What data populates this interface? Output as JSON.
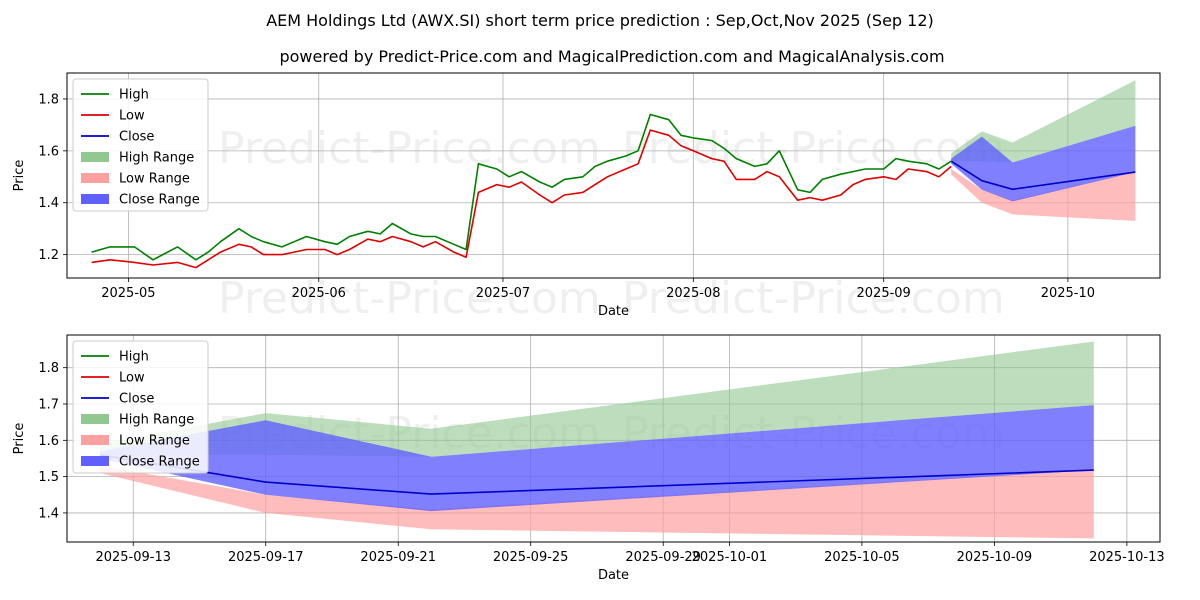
{
  "title": "AEM Holdings Ltd (AWX.SI) short term price prediction : Sep,Oct,Nov 2025 (Sep 12)",
  "subtitle": "powered by Predict-Price.com and MagicalPrediction.com and MagicalAnalysis.com",
  "watermark": "Predict-Price.com",
  "colors": {
    "high": "#008000",
    "low": "#e00000",
    "close": "#0000cc",
    "high_range": "#90c890",
    "low_range": "#ffa0a0",
    "close_range": "#6060ff"
  },
  "legend": [
    "High",
    "Low",
    "Close",
    "High Range",
    "Low Range",
    "Close Range"
  ],
  "chart_data": [
    {
      "type": "line",
      "xlabel": "Date",
      "ylabel": "Price",
      "xlim": [
        "2025-04-21",
        "2025-10-16"
      ],
      "ylim": [
        1.11,
        1.9
      ],
      "xticks": [
        "2025-05",
        "2025-06",
        "2025-07",
        "2025-08",
        "2025-09",
        "2025-10"
      ],
      "xtick_dates": [
        "2025-05-01",
        "2025-06-01",
        "2025-07-01",
        "2025-08-01",
        "2025-09-01",
        "2025-10-01"
      ],
      "yticks": [
        1.2,
        1.4,
        1.6,
        1.8
      ],
      "grid": true,
      "legend_position": "top-left",
      "history": {
        "dates": [
          "2025-04-25",
          "2025-04-28",
          "2025-05-02",
          "2025-05-05",
          "2025-05-09",
          "2025-05-12",
          "2025-05-14",
          "2025-05-16",
          "2025-05-19",
          "2025-05-21",
          "2025-05-23",
          "2025-05-26",
          "2025-05-28",
          "2025-05-30",
          "2025-06-02",
          "2025-06-04",
          "2025-06-06",
          "2025-06-09",
          "2025-06-11",
          "2025-06-13",
          "2025-06-16",
          "2025-06-18",
          "2025-06-20",
          "2025-06-23",
          "2025-06-25",
          "2025-06-27",
          "2025-06-30",
          "2025-07-02",
          "2025-07-04",
          "2025-07-07",
          "2025-07-09",
          "2025-07-11",
          "2025-07-14",
          "2025-07-16",
          "2025-07-18",
          "2025-07-21",
          "2025-07-23",
          "2025-07-25",
          "2025-07-28",
          "2025-07-30",
          "2025-08-01",
          "2025-08-04",
          "2025-08-06",
          "2025-08-08",
          "2025-08-11",
          "2025-08-13",
          "2025-08-15",
          "2025-08-18",
          "2025-08-20",
          "2025-08-22",
          "2025-08-25",
          "2025-08-27",
          "2025-08-29",
          "2025-09-01",
          "2025-09-03",
          "2025-09-05",
          "2025-09-08",
          "2025-09-10",
          "2025-09-12"
        ],
        "high": [
          1.21,
          1.23,
          1.23,
          1.18,
          1.23,
          1.18,
          1.21,
          1.25,
          1.3,
          1.27,
          1.25,
          1.23,
          1.25,
          1.27,
          1.25,
          1.24,
          1.27,
          1.29,
          1.28,
          1.32,
          1.28,
          1.27,
          1.27,
          1.24,
          1.22,
          1.55,
          1.53,
          1.5,
          1.52,
          1.48,
          1.46,
          1.49,
          1.5,
          1.54,
          1.56,
          1.58,
          1.6,
          1.74,
          1.72,
          1.66,
          1.65,
          1.64,
          1.61,
          1.57,
          1.54,
          1.55,
          1.6,
          1.45,
          1.44,
          1.49,
          1.51,
          1.52,
          1.53,
          1.53,
          1.57,
          1.56,
          1.55,
          1.53,
          1.56
        ],
        "low": [
          1.17,
          1.18,
          1.17,
          1.16,
          1.17,
          1.15,
          1.18,
          1.21,
          1.24,
          1.23,
          1.2,
          1.2,
          1.21,
          1.22,
          1.22,
          1.2,
          1.22,
          1.26,
          1.25,
          1.27,
          1.25,
          1.23,
          1.25,
          1.21,
          1.19,
          1.44,
          1.47,
          1.46,
          1.48,
          1.43,
          1.4,
          1.43,
          1.44,
          1.47,
          1.5,
          1.53,
          1.55,
          1.68,
          1.66,
          1.62,
          1.6,
          1.57,
          1.56,
          1.49,
          1.49,
          1.52,
          1.5,
          1.41,
          1.42,
          1.41,
          1.43,
          1.47,
          1.49,
          1.5,
          1.49,
          1.53,
          1.52,
          1.5,
          1.54
        ]
      },
      "forecast": {
        "dates": [
          "2025-09-12",
          "2025-09-17",
          "2025-09-22",
          "2025-10-12"
        ],
        "close": [
          1.56,
          1.485,
          1.452,
          1.518
        ],
        "close_range": {
          "upper": [
            1.57,
            1.655,
            1.555,
            1.697
          ],
          "lower": [
            1.55,
            1.45,
            1.405,
            1.518
          ]
        },
        "high_range": {
          "upper": [
            1.59,
            1.675,
            1.632,
            1.872
          ],
          "lower": [
            1.56,
            1.56,
            1.555,
            1.697
          ]
        },
        "low_range": {
          "upper": [
            1.53,
            1.45,
            1.41,
            1.52
          ],
          "lower": [
            1.51,
            1.4,
            1.355,
            1.33
          ]
        }
      }
    },
    {
      "type": "line",
      "xlabel": "Date",
      "ylabel": "Price",
      "xlim": [
        "2025-09-11",
        "2025-10-14"
      ],
      "ylim": [
        1.32,
        1.89
      ],
      "xticks": [
        "2025-09-13",
        "2025-09-17",
        "2025-09-21",
        "2025-09-25",
        "2025-09-29",
        "2025-10-01",
        "2025-10-05",
        "2025-10-09",
        "2025-10-13"
      ],
      "yticks": [
        1.4,
        1.5,
        1.6,
        1.7,
        1.8
      ],
      "grid": true,
      "legend_position": "top-left"
    }
  ]
}
